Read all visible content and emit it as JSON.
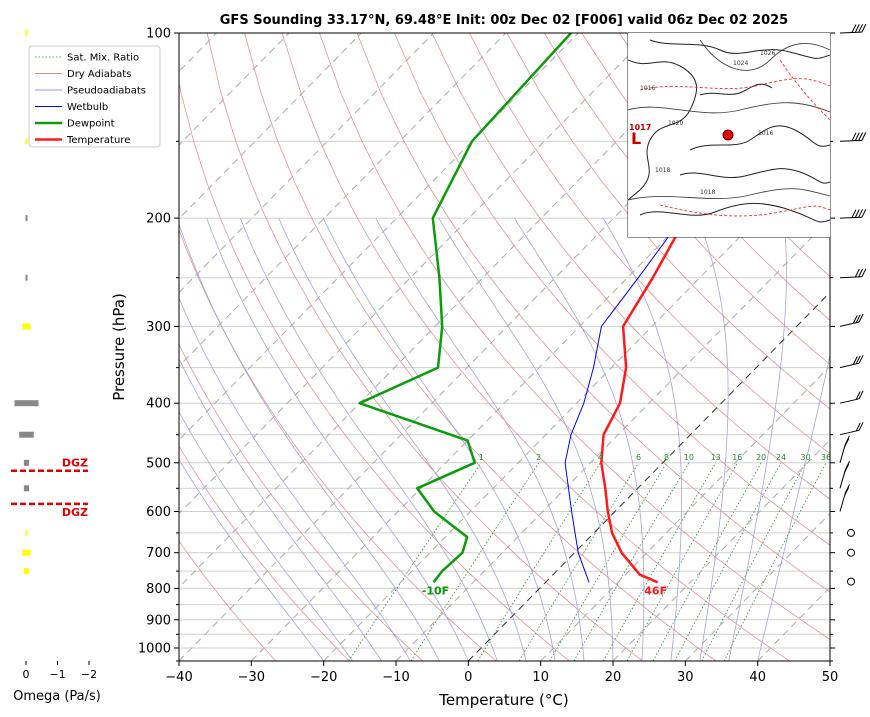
{
  "title": "GFS Sounding 33.17°N, 69.48°E Init: 00z Dec 02 [F006] valid 06z Dec 02 2025",
  "chart_data": {
    "type": "skew-t",
    "xlabel": "Temperature (°C)",
    "ylabel": "Pressure (hPa)",
    "x_range": [
      -40,
      50
    ],
    "x_ticks": [
      -40,
      -30,
      -20,
      -10,
      0,
      10,
      20,
      30,
      40,
      50
    ],
    "p_range": [
      1050,
      100
    ],
    "p_ticks": [
      100,
      200,
      300,
      400,
      500,
      600,
      700,
      800,
      900,
      1000
    ],
    "log_scale": true,
    "grid": true,
    "legend_position": "top-left",
    "legend": [
      "Sat. Mix. Ratio",
      "Dry Adiabats",
      "Pseudoadiabats",
      "Wetbulb",
      "Dewpoint",
      "Temperature"
    ],
    "mixing_ratio_labels": [
      "1",
      "2",
      "4",
      "6",
      "8",
      "10",
      "13",
      "16",
      "20",
      "24",
      "30",
      "36"
    ],
    "series": [
      {
        "name": "Temperature",
        "color": "#ff1a1a",
        "points": [
          [
            782,
            15.5
          ],
          [
            760,
            12
          ],
          [
            700,
            6.5
          ],
          [
            650,
            2.5
          ],
          [
            600,
            -1
          ],
          [
            550,
            -4.5
          ],
          [
            500,
            -8.5
          ],
          [
            450,
            -12
          ],
          [
            400,
            -14
          ],
          [
            350,
            -18
          ],
          [
            300,
            -24
          ],
          [
            250,
            -26.5
          ],
          [
            200,
            -30
          ],
          [
            150,
            -35.5
          ],
          [
            100,
            -43
          ]
        ]
      },
      {
        "name": "Dewpoint",
        "color": "#0a9c0a",
        "points": [
          [
            782,
            -15.5
          ],
          [
            750,
            -15.8
          ],
          [
            700,
            -15.5
          ],
          [
            660,
            -17
          ],
          [
            600,
            -25
          ],
          [
            550,
            -30.5
          ],
          [
            500,
            -26
          ],
          [
            460,
            -30
          ],
          [
            400,
            -50
          ],
          [
            350,
            -44
          ],
          [
            300,
            -49
          ],
          [
            250,
            -56
          ],
          [
            200,
            -65
          ],
          [
            150,
            -70
          ],
          [
            100,
            -71
          ]
        ]
      },
      {
        "name": "Wetbulb",
        "color": "#0000ff",
        "points": [
          [
            782,
            6
          ],
          [
            700,
            0.5
          ],
          [
            600,
            -6
          ],
          [
            500,
            -13.5
          ],
          [
            450,
            -16.5
          ],
          [
            400,
            -19
          ],
          [
            350,
            -22.5
          ],
          [
            300,
            -27
          ],
          [
            250,
            -28.5
          ],
          [
            200,
            -30.5
          ],
          [
            150,
            -35.5
          ],
          [
            100,
            -43
          ]
        ]
      }
    ],
    "surface_labels": {
      "temperature": "46F",
      "dewpoint": "-10F"
    },
    "omega": {
      "xlabel": "Omega (Pa/s)",
      "ticks": [
        "0",
        "−1",
        "−2"
      ],
      "dgz_label": "DGZ",
      "dgz_levels_hpa": [
        515,
        583
      ],
      "bars": [
        [
          100,
          0,
          "#ffff00"
        ],
        [
          150,
          0,
          "#ffff00"
        ],
        [
          200,
          0,
          "#888888"
        ],
        [
          250,
          0,
          "#888888"
        ],
        [
          300,
          0.1,
          "#ffff00"
        ],
        [
          400,
          0.35,
          "#888888"
        ],
        [
          450,
          0.2,
          "#888888"
        ],
        [
          500,
          0.05,
          "#888888"
        ],
        [
          550,
          0.05,
          "#888888"
        ],
        [
          650,
          0,
          "#ffff00"
        ],
        [
          700,
          0.1,
          "#ffff00"
        ],
        [
          750,
          0.05,
          "#ffff00"
        ]
      ]
    },
    "wind_barbs_hpa": [
      100,
      150,
      200,
      250,
      300,
      350,
      400,
      450,
      500,
      550,
      600
    ],
    "calm_levels_hpa": [
      650,
      700,
      780
    ],
    "inset_map": {
      "pressure_labels": [
        "1017",
        "1018",
        "1020",
        "1024",
        "1016",
        "1026",
        "1018",
        "1016"
      ],
      "low_marker": "L",
      "low_pressure": "1017"
    }
  }
}
